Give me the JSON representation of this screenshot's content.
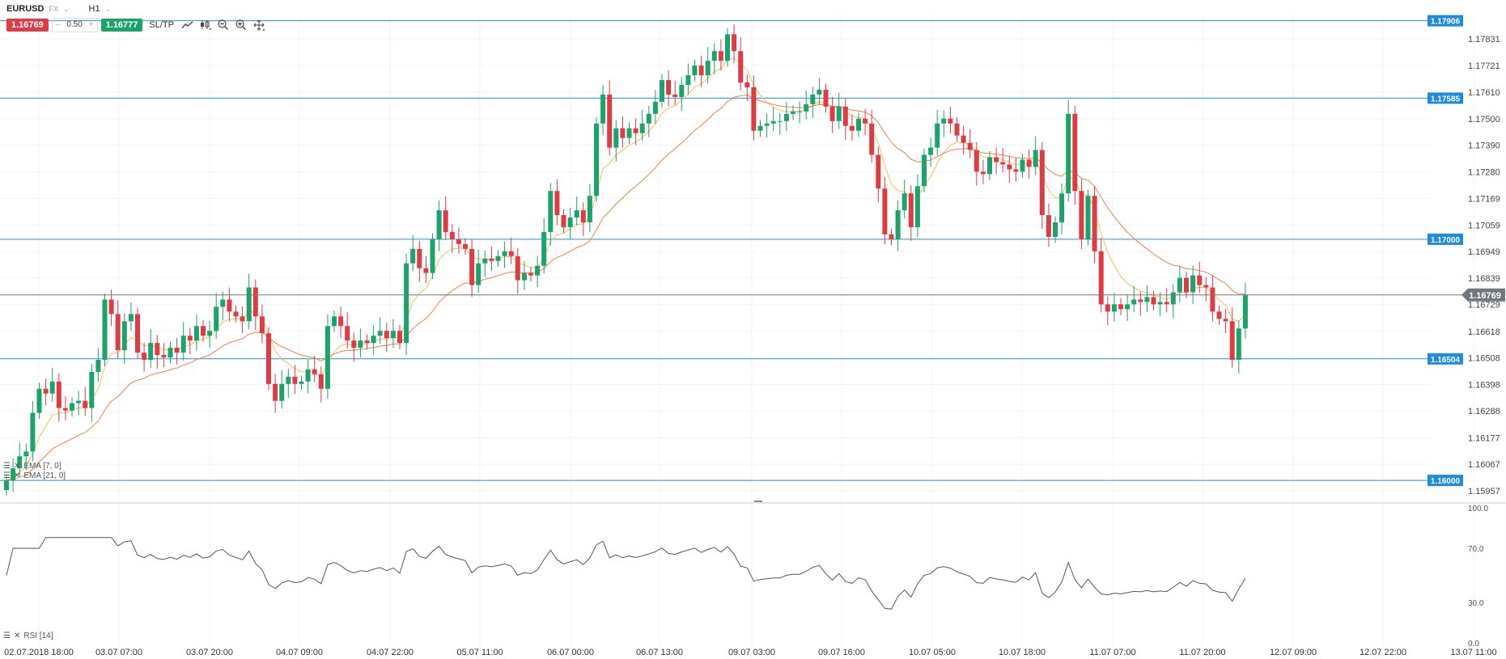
{
  "header": {
    "symbol": "EURUSD",
    "symbol_type": "FX",
    "timeframe": "H1",
    "sell_price": "1.16769",
    "lot_minus": "–",
    "lot_size": "0.50",
    "lot_plus": "+",
    "buy_price": "1.16777",
    "sltp_label": "SL/TP"
  },
  "icons": [
    "line-chart-icon",
    "candles-icon",
    "zoom-out-icon",
    "zoom-in-icon",
    "crosshair-icon",
    "menu-icon",
    "close-icon"
  ],
  "indicators": {
    "ema7": "EMA [7, 0]",
    "ema21": "EMA [21, 0]",
    "rsi": "RSI [14]"
  },
  "colors": {
    "bull": "#1aa36b",
    "bear": "#e03b45",
    "ema7": "#f0c060",
    "ema21": "#e8834a",
    "hline": "#2a8fd8",
    "current": "#777777"
  },
  "chart_data": {
    "type": "candlestick",
    "symbol": "EURUSD",
    "timeframe": "H1",
    "y_ticks": [
      "1.17831",
      "1.17721",
      "1.17610",
      "1.17500",
      "1.17390",
      "1.17280",
      "1.17169",
      "1.17059",
      "1.16949",
      "1.16839",
      "1.16729",
      "1.16618",
      "1.16508",
      "1.16398",
      "1.16288",
      "1.16177",
      "1.16067",
      "1.15957"
    ],
    "ylim": [
      1.1593,
      1.17925
    ],
    "x_ticks": [
      "02.07.2018 18:00",
      "03.07 07:00",
      "03.07 20:00",
      "04.07 09:00",
      "04.07 22:00",
      "05.07 11:00",
      "06.07 00:00",
      "06.07 13:00",
      "09.07 03:00",
      "09.07 16:00",
      "10.07 05:00",
      "10.07 18:00",
      "11.07 07:00",
      "11.07 20:00",
      "12.07 09:00",
      "12.07 22:00",
      "13.07 11:00"
    ],
    "horizontal_lines": [
      {
        "label": "1.17906",
        "value": 1.17906
      },
      {
        "label": "1.17585",
        "value": 1.17585
      },
      {
        "label": "1.17000",
        "value": 1.17
      },
      {
        "label": "1.16504",
        "value": 1.16504
      },
      {
        "label": "1.16000",
        "value": 1.16
      }
    ],
    "current_price": {
      "label": "1.16769",
      "value": 1.16769
    },
    "close": [
      1.16,
      1.1605,
      1.161,
      1.1612,
      1.1628,
      1.1638,
      1.1636,
      1.1641,
      1.163,
      1.1629,
      1.1632,
      1.1633,
      1.163,
      1.1645,
      1.165,
      1.1675,
      1.1669,
      1.1654,
      1.1666,
      1.1669,
      1.1653,
      1.165,
      1.1657,
      1.1652,
      1.1651,
      1.1655,
      1.1653,
      1.166,
      1.1658,
      1.1664,
      1.166,
      1.1662,
      1.1672,
      1.1675,
      1.167,
      1.1668,
      1.1666,
      1.168,
      1.1668,
      1.1661,
      1.164,
      1.1633,
      1.164,
      1.1643,
      1.164,
      1.1641,
      1.1646,
      1.1644,
      1.1638,
      1.1664,
      1.1668,
      1.1664,
      1.1658,
      1.1655,
      1.1658,
      1.1657,
      1.166,
      1.1662,
      1.1659,
      1.1662,
      1.1657,
      1.169,
      1.1696,
      1.1688,
      1.1686,
      1.17,
      1.1712,
      1.1703,
      1.17,
      1.1698,
      1.1696,
      1.1681,
      1.169,
      1.1692,
      1.1691,
      1.1693,
      1.1695,
      1.1693,
      1.1683,
      1.1686,
      1.1685,
      1.1689,
      1.1703,
      1.172,
      1.171,
      1.1705,
      1.1709,
      1.1712,
      1.1707,
      1.1718,
      1.1748,
      1.176,
      1.1738,
      1.1746,
      1.1742,
      1.1746,
      1.1744,
      1.1748,
      1.1752,
      1.1757,
      1.1766,
      1.176,
      1.1759,
      1.1764,
      1.1768,
      1.1772,
      1.1768,
      1.1774,
      1.1778,
      1.1774,
      1.1785,
      1.1778,
      1.1765,
      1.1763,
      1.1745,
      1.1747,
      1.1748,
      1.1749,
      1.1749,
      1.1752,
      1.1753,
      1.1753,
      1.1756,
      1.176,
      1.1762,
      1.1755,
      1.1749,
      1.1755,
      1.1747,
      1.1745,
      1.175,
      1.1748,
      1.1735,
      1.1721,
      1.1702,
      1.17,
      1.1712,
      1.1719,
      1.1705,
      1.1722,
      1.1735,
      1.1738,
      1.1748,
      1.175,
      1.1748,
      1.1743,
      1.174,
      1.1737,
      1.1728,
      1.1727,
      1.1734,
      1.1732,
      1.1731,
      1.1729,
      1.1728,
      1.1733,
      1.173,
      1.1737,
      1.171,
      1.1701,
      1.1707,
      1.1719,
      1.1752,
      1.172,
      1.17,
      1.1718,
      1.1695,
      1.1673,
      1.167,
      1.1673,
      1.1671,
      1.1673,
      1.1675,
      1.1674,
      1.1676,
      1.1673,
      1.1674,
      1.1673,
      1.1678,
      1.1684,
      1.1678,
      1.1685,
      1.1681,
      1.168,
      1.167,
      1.1667,
      1.1666,
      1.165,
      1.1663,
      1.1677
    ]
  }
}
